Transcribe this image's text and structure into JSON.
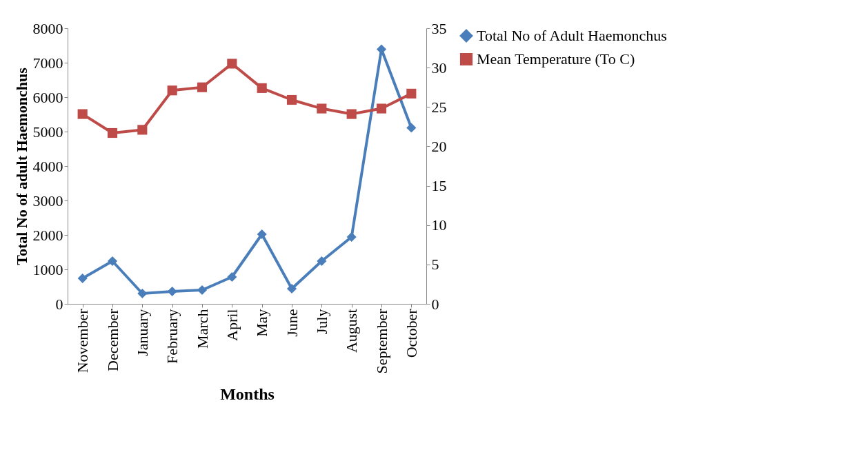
{
  "chart_data": {
    "type": "line",
    "xlabel": "Months",
    "ylabel": "Total No of adult Haemonchus",
    "categories": [
      "November",
      "December",
      "January",
      "February",
      "March",
      "April",
      "May",
      "June",
      "July",
      "August",
      "September",
      "October"
    ],
    "ylim": [
      0,
      8000
    ],
    "yticks": [
      0,
      1000,
      2000,
      3000,
      4000,
      5000,
      6000,
      7000,
      8000
    ],
    "y2lim": [
      0,
      35
    ],
    "y2ticks": [
      0,
      5,
      10,
      15,
      20,
      25,
      30,
      35
    ],
    "grid": false,
    "legend": "right",
    "line_style": "solid",
    "series": [
      {
        "name": "Total No of Adult Haemonchus",
        "color": "#4a7ebb",
        "marker": "diamond",
        "values": [
          740,
          1240,
          300,
          360,
          400,
          780,
          2020,
          440,
          1240,
          1940,
          7390,
          5110
        ]
      },
      {
        "name": "Mean Temperature (To C)",
        "color": "#be4b48",
        "marker": "square",
        "axis": "y2",
        "values": [
          24.1,
          21.7,
          22.1,
          27.1,
          27.5,
          30.5,
          27.4,
          25.9,
          24.8,
          24.1,
          24.8,
          26.7
        ]
      }
    ]
  }
}
